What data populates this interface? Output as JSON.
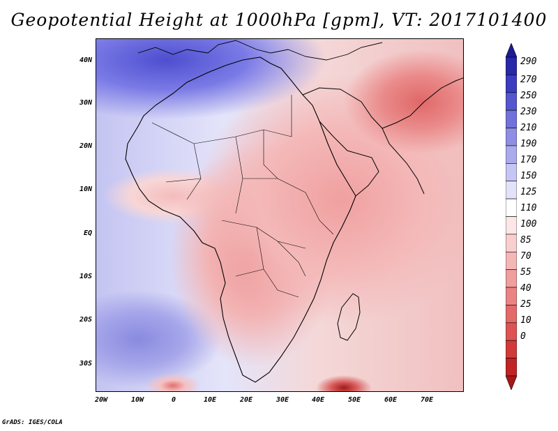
{
  "title": "Geopotential Height at 1000hPa [gpm], VT: 2017101400",
  "footer": "GrADS: IGES/COLA",
  "map": {
    "region": "Africa and Indian Ocean",
    "variable": "Geopotential Height at 1000hPa",
    "units": "gpm",
    "valid_time": "2017101400",
    "lat_labels": [
      "40N",
      "30N",
      "20N",
      "10N",
      "EQ",
      "10S",
      "20S",
      "30S"
    ],
    "lon_labels": [
      "20W",
      "10W",
      "0",
      "10E",
      "20E",
      "30E",
      "40E",
      "50E",
      "60E",
      "70E"
    ]
  },
  "colorbar": {
    "levels": [
      "290",
      "270",
      "250",
      "230",
      "210",
      "190",
      "170",
      "150",
      "125",
      "110",
      "100",
      "85",
      "70",
      "55",
      "40",
      "25",
      "10",
      "0"
    ],
    "colors": [
      "#ab1616",
      "#c02424",
      "#d23a3a",
      "#de5454",
      "#e46a6a",
      "#ea8484",
      "#f09e9e",
      "#f4b6b6",
      "#f8cece",
      "#fce6e6",
      "#ffffff",
      "#e2e2fa",
      "#c6c6f4",
      "#aaaaec",
      "#8e8ee4",
      "#7272da",
      "#5656ce",
      "#3c3cc0",
      "#2828a8",
      "#1c1c96"
    ]
  }
}
